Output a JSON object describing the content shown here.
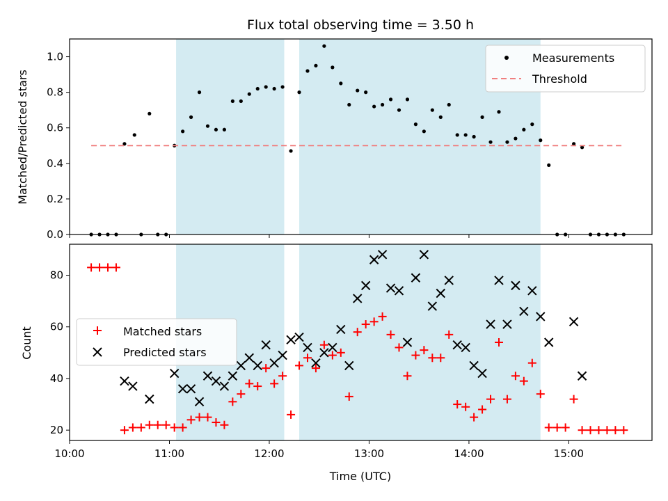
{
  "chart_data": [
    {
      "type": "scatter",
      "title": "Flux total observing time = 3.50 h",
      "xlabel": "",
      "ylabel": "Matched/Predicted stars",
      "xlim": [
        "10:00",
        "15:50"
      ],
      "ylim": [
        0,
        1.1
      ],
      "yticks": [
        "0.0",
        "0.2",
        "0.4",
        "0.6",
        "0.8",
        "1.0"
      ],
      "legend_position": "top-right",
      "shaded_intervals": [
        [
          "11:04",
          "12:09"
        ],
        [
          "12:18",
          "14:43"
        ]
      ],
      "shade_color": "#add8e6",
      "series": [
        {
          "name": "Measurements",
          "kind": "scatter",
          "marker": "dot",
          "color": "#000000",
          "points": [
            [
              "10:13",
              0.0
            ],
            [
              "10:18",
              0.0
            ],
            [
              "10:23",
              0.0
            ],
            [
              "10:28",
              0.0
            ],
            [
              "10:33",
              0.51
            ],
            [
              "10:39",
              0.56
            ],
            [
              "10:43",
              0.0
            ],
            [
              "10:48",
              0.68
            ],
            [
              "10:53",
              0.0
            ],
            [
              "10:58",
              0.0
            ],
            [
              "11:03",
              0.5
            ],
            [
              "11:08",
              0.58
            ],
            [
              "11:13",
              0.66
            ],
            [
              "11:18",
              0.8
            ],
            [
              "11:23",
              0.61
            ],
            [
              "11:28",
              0.59
            ],
            [
              "11:33",
              0.59
            ],
            [
              "11:38",
              0.75
            ],
            [
              "11:43",
              0.75
            ],
            [
              "11:48",
              0.79
            ],
            [
              "11:53",
              0.82
            ],
            [
              "11:58",
              0.83
            ],
            [
              "12:03",
              0.82
            ],
            [
              "12:08",
              0.83
            ],
            [
              "12:13",
              0.47
            ],
            [
              "12:18",
              0.8
            ],
            [
              "12:23",
              0.92
            ],
            [
              "12:28",
              0.95
            ],
            [
              "12:33",
              1.06
            ],
            [
              "12:38",
              0.94
            ],
            [
              "12:43",
              0.85
            ],
            [
              "12:48",
              0.73
            ],
            [
              "12:53",
              0.81
            ],
            [
              "12:58",
              0.8
            ],
            [
              "13:03",
              0.72
            ],
            [
              "13:08",
              0.73
            ],
            [
              "13:13",
              0.76
            ],
            [
              "13:18",
              0.7
            ],
            [
              "13:23",
              0.76
            ],
            [
              "13:28",
              0.62
            ],
            [
              "13:33",
              0.58
            ],
            [
              "13:38",
              0.7
            ],
            [
              "13:43",
              0.66
            ],
            [
              "13:48",
              0.73
            ],
            [
              "13:53",
              0.56
            ],
            [
              "13:58",
              0.56
            ],
            [
              "14:03",
              0.55
            ],
            [
              "14:08",
              0.66
            ],
            [
              "14:13",
              0.52
            ],
            [
              "14:18",
              0.69
            ],
            [
              "14:23",
              0.52
            ],
            [
              "14:28",
              0.54
            ],
            [
              "14:33",
              0.59
            ],
            [
              "14:38",
              0.62
            ],
            [
              "14:43",
              0.53
            ],
            [
              "14:48",
              0.39
            ],
            [
              "14:53",
              0.0
            ],
            [
              "14:58",
              0.0
            ],
            [
              "15:03",
              0.51
            ],
            [
              "15:08",
              0.49
            ],
            [
              "15:13",
              0.0
            ],
            [
              "15:18",
              0.0
            ],
            [
              "15:23",
              0.0
            ],
            [
              "15:28",
              0.0
            ],
            [
              "15:33",
              0.0
            ]
          ]
        },
        {
          "name": "Threshold",
          "kind": "hline",
          "style": "dashed",
          "color": "#f08080",
          "x": [
            "10:13",
            "15:33"
          ],
          "y": 0.5
        }
      ]
    },
    {
      "type": "scatter",
      "title": "",
      "xlabel": "Time (UTC)",
      "ylabel": "Count",
      "xlim": [
        "10:00",
        "15:50"
      ],
      "ylim": [
        16,
        92
      ],
      "xticks": [
        "10:00",
        "11:00",
        "12:00",
        "13:00",
        "14:00",
        "15:00"
      ],
      "yticks": [
        "20",
        "40",
        "60",
        "80"
      ],
      "legend_position": "center-left",
      "shaded_intervals": [
        [
          "11:04",
          "12:09"
        ],
        [
          "12:18",
          "14:43"
        ]
      ],
      "shade_color": "#add8e6",
      "series": [
        {
          "name": "Matched stars",
          "kind": "scatter",
          "marker": "plus",
          "color": "#ff0000",
          "points": [
            [
              "10:13",
              83
            ],
            [
              "10:18",
              83
            ],
            [
              "10:23",
              83
            ],
            [
              "10:28",
              83
            ],
            [
              "10:33",
              20
            ],
            [
              "10:38",
              21
            ],
            [
              "10:43",
              21
            ],
            [
              "10:48",
              22
            ],
            [
              "10:53",
              22
            ],
            [
              "10:58",
              22
            ],
            [
              "11:03",
              21
            ],
            [
              "11:08",
              21
            ],
            [
              "11:13",
              24
            ],
            [
              "11:18",
              25
            ],
            [
              "11:23",
              25
            ],
            [
              "11:28",
              23
            ],
            [
              "11:33",
              22
            ],
            [
              "11:38",
              31
            ],
            [
              "11:43",
              34
            ],
            [
              "11:48",
              38
            ],
            [
              "11:53",
              37
            ],
            [
              "11:58",
              44
            ],
            [
              "12:03",
              38
            ],
            [
              "12:08",
              41
            ],
            [
              "12:13",
              26
            ],
            [
              "12:18",
              45
            ],
            [
              "12:23",
              48
            ],
            [
              "12:28",
              44
            ],
            [
              "12:33",
              53
            ],
            [
              "12:38",
              49
            ],
            [
              "12:43",
              50
            ],
            [
              "12:48",
              33
            ],
            [
              "12:53",
              58
            ],
            [
              "12:58",
              61
            ],
            [
              "13:03",
              62
            ],
            [
              "13:08",
              64
            ],
            [
              "13:13",
              57
            ],
            [
              "13:18",
              52
            ],
            [
              "13:23",
              41
            ],
            [
              "13:28",
              49
            ],
            [
              "13:33",
              51
            ],
            [
              "13:38",
              48
            ],
            [
              "13:43",
              48
            ],
            [
              "13:48",
              57
            ],
            [
              "13:53",
              30
            ],
            [
              "13:58",
              29
            ],
            [
              "14:03",
              25
            ],
            [
              "14:08",
              28
            ],
            [
              "14:13",
              32
            ],
            [
              "14:18",
              54
            ],
            [
              "14:23",
              32
            ],
            [
              "14:28",
              41
            ],
            [
              "14:33",
              39
            ],
            [
              "14:38",
              46
            ],
            [
              "14:43",
              34
            ],
            [
              "14:48",
              21
            ],
            [
              "14:53",
              21
            ],
            [
              "14:58",
              21
            ],
            [
              "15:03",
              32
            ],
            [
              "15:08",
              20
            ],
            [
              "15:13",
              20
            ],
            [
              "15:18",
              20
            ],
            [
              "15:23",
              20
            ],
            [
              "15:28",
              20
            ],
            [
              "15:33",
              20
            ]
          ]
        },
        {
          "name": "Predicted stars",
          "kind": "scatter",
          "marker": "x",
          "color": "#000000",
          "points": [
            [
              "10:33",
              39
            ],
            [
              "10:38",
              37
            ],
            [
              "10:48",
              32
            ],
            [
              "11:03",
              42
            ],
            [
              "11:08",
              36
            ],
            [
              "11:13",
              36
            ],
            [
              "11:18",
              31
            ],
            [
              "11:23",
              41
            ],
            [
              "11:28",
              39
            ],
            [
              "11:33",
              37
            ],
            [
              "11:38",
              41
            ],
            [
              "11:43",
              45
            ],
            [
              "11:48",
              48
            ],
            [
              "11:53",
              45
            ],
            [
              "11:58",
              53
            ],
            [
              "12:03",
              46
            ],
            [
              "12:08",
              49
            ],
            [
              "12:13",
              55
            ],
            [
              "12:18",
              56
            ],
            [
              "12:23",
              52
            ],
            [
              "12:28",
              46
            ],
            [
              "12:33",
              50
            ],
            [
              "12:38",
              52
            ],
            [
              "12:43",
              59
            ],
            [
              "12:48",
              45
            ],
            [
              "12:53",
              71
            ],
            [
              "12:58",
              76
            ],
            [
              "13:03",
              86
            ],
            [
              "13:08",
              88
            ],
            [
              "13:13",
              75
            ],
            [
              "13:18",
              74
            ],
            [
              "13:23",
              54
            ],
            [
              "13:28",
              79
            ],
            [
              "13:33",
              88
            ],
            [
              "13:38",
              68
            ],
            [
              "13:43",
              73
            ],
            [
              "13:48",
              78
            ],
            [
              "13:53",
              53
            ],
            [
              "13:58",
              52
            ],
            [
              "14:03",
              45
            ],
            [
              "14:08",
              42
            ],
            [
              "14:13",
              61
            ],
            [
              "14:18",
              78
            ],
            [
              "14:23",
              61
            ],
            [
              "14:28",
              76
            ],
            [
              "14:33",
              66
            ],
            [
              "14:38",
              74
            ],
            [
              "14:43",
              64
            ],
            [
              "14:48",
              54
            ],
            [
              "15:03",
              62
            ],
            [
              "15:08",
              41
            ]
          ]
        }
      ]
    }
  ]
}
